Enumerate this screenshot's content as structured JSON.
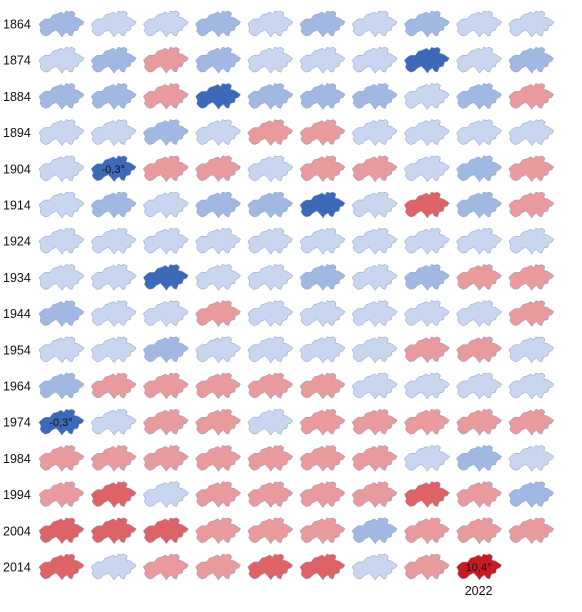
{
  "chart_data": {
    "type": "heatmap",
    "description_rows": "decades",
    "row_labels": [
      "1864",
      "1874",
      "1884",
      "1894",
      "1904",
      "1914",
      "1924",
      "1934",
      "1944",
      "1954",
      "1964",
      "1974",
      "1984",
      "1994",
      "2004",
      "2014"
    ],
    "columns_per_row": 10,
    "value_bins": {
      "strong_cold": "#3d6ab8",
      "cold": "#a1b8e2",
      "slightly_cold": "#c9d6f0",
      "warm": "#e99a9c",
      "very_warm": "#de6366",
      "record_warm": "#c81b21"
    },
    "bins_by_row": [
      [
        "cold",
        "slightly_cold",
        "slightly_cold",
        "cold",
        "slightly_cold",
        "cold",
        "slightly_cold",
        "cold",
        "slightly_cold",
        "slightly_cold"
      ],
      [
        "slightly_cold",
        "cold",
        "warm",
        "cold",
        "slightly_cold",
        "slightly_cold",
        "slightly_cold",
        "strong_cold",
        "slightly_cold",
        "cold"
      ],
      [
        "cold",
        "cold",
        "warm",
        "strong_cold",
        "cold",
        "cold",
        "cold",
        "slightly_cold",
        "cold",
        "warm"
      ],
      [
        "slightly_cold",
        "slightly_cold",
        "cold",
        "slightly_cold",
        "warm",
        "warm",
        "slightly_cold",
        "slightly_cold",
        "slightly_cold",
        "slightly_cold"
      ],
      [
        "slightly_cold",
        "strong_cold",
        "warm",
        "warm",
        "slightly_cold",
        "warm",
        "warm",
        "slightly_cold",
        "cold",
        "warm"
      ],
      [
        "slightly_cold",
        "cold",
        "slightly_cold",
        "cold",
        "cold",
        "strong_cold",
        "slightly_cold",
        "very_warm",
        "cold",
        "warm"
      ],
      [
        "slightly_cold",
        "slightly_cold",
        "slightly_cold",
        "slightly_cold",
        "slightly_cold",
        "slightly_cold",
        "slightly_cold",
        "slightly_cold",
        "slightly_cold",
        "slightly_cold"
      ],
      [
        "slightly_cold",
        "slightly_cold",
        "strong_cold",
        "slightly_cold",
        "slightly_cold",
        "cold",
        "slightly_cold",
        "cold",
        "warm",
        "warm"
      ],
      [
        "cold",
        "slightly_cold",
        "slightly_cold",
        "warm",
        "slightly_cold",
        "slightly_cold",
        "slightly_cold",
        "slightly_cold",
        "slightly_cold",
        "warm"
      ],
      [
        "slightly_cold",
        "slightly_cold",
        "cold",
        "slightly_cold",
        "slightly_cold",
        "slightly_cold",
        "slightly_cold",
        "warm",
        "warm",
        "slightly_cold"
      ],
      [
        "cold",
        "warm",
        "warm",
        "warm",
        "warm",
        "warm",
        "slightly_cold",
        "slightly_cold",
        "slightly_cold",
        "slightly_cold"
      ],
      [
        "strong_cold",
        "slightly_cold",
        "warm",
        "warm",
        "slightly_cold",
        "warm",
        "warm",
        "warm",
        "warm",
        "warm"
      ],
      [
        "warm",
        "warm",
        "warm",
        "warm",
        "warm",
        "warm",
        "warm",
        "slightly_cold",
        "cold",
        "slightly_cold"
      ],
      [
        "warm",
        "very_warm",
        "slightly_cold",
        "warm",
        "warm",
        "warm",
        "warm",
        "very_warm",
        "warm",
        "cold"
      ],
      [
        "very_warm",
        "very_warm",
        "very_warm",
        "warm",
        "warm",
        "warm",
        "cold",
        "warm",
        "warm",
        "warm"
      ],
      [
        "very_warm",
        "slightly_cold",
        "warm",
        "warm",
        "very_warm",
        "very_warm",
        "slightly_cold",
        "warm",
        "record_warm",
        ""
      ]
    ],
    "annotations": [
      {
        "row": 4,
        "col": 1,
        "text": "-0,3°"
      },
      {
        "row": 11,
        "col": 0,
        "text": "-0,3°"
      },
      {
        "row": 15,
        "col": 8,
        "text": "10,4°",
        "year": "2022"
      }
    ],
    "title": "",
    "xlabel": "",
    "ylabel": "",
    "legend": "none",
    "grid": false
  }
}
